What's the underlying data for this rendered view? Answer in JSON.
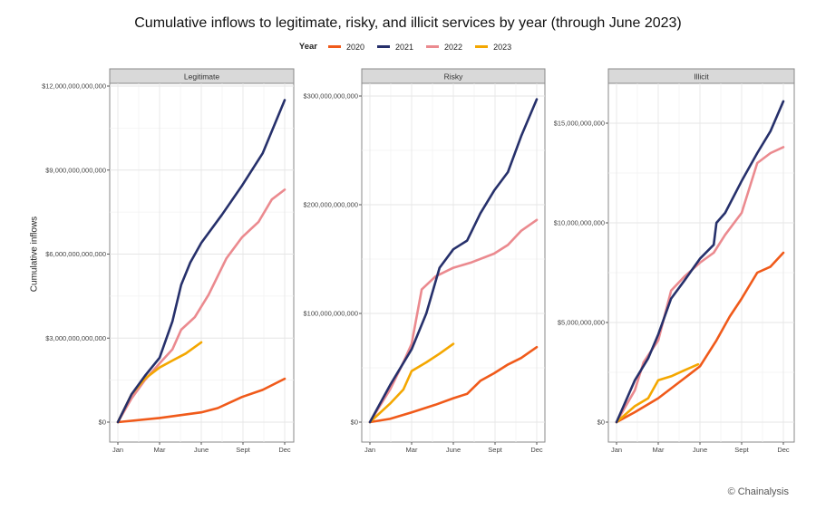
{
  "chart_data": {
    "type": "line",
    "title": "Cumulative inflows to legitimate, risky, and illicit services by year (through June 2023)",
    "ylabel": "Cumulative inflows",
    "xlabel": "",
    "legend": {
      "title": "Year",
      "placement": "top",
      "entries": [
        "2020",
        "2021",
        "2022",
        "2023"
      ]
    },
    "colors": {
      "2020": "#f05a1a",
      "2021": "#26306b",
      "2022": "#eb8a8f",
      "2023": "#f4a700"
    },
    "grid": true,
    "x_unit": "day of year",
    "x_ticks": [
      {
        "label": "Jan",
        "value": 1
      },
      {
        "label": "Mar",
        "value": 92
      },
      {
        "label": "June",
        "value": 183
      },
      {
        "label": "Sept",
        "value": 274
      },
      {
        "label": "Dec",
        "value": 365
      }
    ],
    "panels": [
      {
        "name": "Legitimate",
        "ylim": [
          0,
          12000000000000
        ],
        "y_ticks": [
          {
            "label": "$0",
            "value": 0
          },
          {
            "label": "$3,000,000,000,000",
            "value": 3000000000000
          },
          {
            "label": "$6,000,000,000,000",
            "value": 6000000000000
          },
          {
            "label": "$9,000,000,000,000",
            "value": 9000000000000
          },
          {
            "label": "$12,000,000,000,000",
            "value": 12000000000000
          }
        ],
        "unit": 1000000000000,
        "series": [
          {
            "name": "2020",
            "x": [
              1,
              92,
              183,
              219,
              272,
              317,
              365
            ],
            "y": [
              0,
              0.15,
              0.35,
              0.5,
              0.9,
              1.15,
              1.55
            ]
          },
          {
            "name": "2021",
            "x": [
              1,
              31,
              60,
              92,
              120,
              139,
              159,
              183,
              228,
              272,
              317,
              365
            ],
            "y": [
              0,
              1.0,
              1.65,
              2.3,
              3.6,
              4.9,
              5.7,
              6.4,
              7.4,
              8.45,
              9.6,
              11.5
            ]
          },
          {
            "name": "2022",
            "x": [
              1,
              31,
              60,
              92,
              120,
              139,
              169,
              199,
              238,
              272,
              308,
              337,
              365
            ],
            "y": [
              0,
              0.85,
              1.5,
              2.1,
              2.6,
              3.3,
              3.75,
              4.55,
              5.85,
              6.6,
              7.15,
              7.95,
              8.3
            ]
          },
          {
            "name": "2023",
            "x": [
              1,
              31,
              60,
              92,
              120,
              149,
              183
            ],
            "y": [
              0,
              1.0,
              1.55,
              1.95,
              2.2,
              2.45,
              2.85
            ]
          }
        ]
      },
      {
        "name": "Risky",
        "ylim": [
          0,
          300000000000
        ],
        "y_ticks": [
          {
            "label": "$0",
            "value": 0
          },
          {
            "label": "$100,000,000,000",
            "value": 100000000000
          },
          {
            "label": "$200,000,000,000",
            "value": 200000000000
          },
          {
            "label": "$300,000,000,000",
            "value": 300000000000
          }
        ],
        "unit": 1000000000,
        "series": [
          {
            "name": "2020",
            "x": [
              1,
              45,
              92,
              144,
              183,
              213,
              242,
              272,
              302,
              331,
              365
            ],
            "y": [
              0,
              3,
              9,
              16,
              22,
              26,
              38,
              45,
              53,
              59,
              69
            ]
          },
          {
            "name": "2021",
            "x": [
              1,
              45,
              92,
              124,
              153,
              183,
              213,
              242,
              272,
              302,
              331,
              365
            ],
            "y": [
              0,
              34,
              67,
              100,
              142,
              159,
              167,
              192,
              213,
              230,
              263,
              297
            ]
          },
          {
            "name": "2022",
            "x": [
              1,
              45,
              74,
              92,
              114,
              144,
              183,
              223,
              272,
              302,
              331,
              365
            ],
            "y": [
              0,
              30,
              55,
              72,
              122,
              134,
              142,
              147,
              155,
              163,
              176,
              186
            ]
          },
          {
            "name": "2023",
            "x": [
              1,
              45,
              74,
              92,
              124,
              153,
              183
            ],
            "y": [
              0,
              17,
              30,
              47,
              55,
              63,
              72
            ]
          }
        ]
      },
      {
        "name": "Illicit",
        "ylim": [
          0,
          15000000000
        ],
        "y_ticks": [
          {
            "label": "$0",
            "value": 0
          },
          {
            "label": "$5,000,000,000",
            "value": 5000000000
          },
          {
            "label": "$10,000,000,000",
            "value": 10000000000
          },
          {
            "label": "$15,000,000,000",
            "value": 15000000000
          }
        ],
        "unit": 1000000000,
        "series": [
          {
            "name": "2020",
            "x": [
              1,
              41,
              92,
              149,
              183,
              219,
              248,
              274,
              308,
              337,
              365
            ],
            "y": [
              0,
              0.5,
              1.2,
              2.2,
              2.8,
              4.1,
              5.3,
              6.2,
              7.5,
              7.8,
              8.5
            ]
          },
          {
            "name": "2021",
            "x": [
              1,
              41,
              70,
              92,
              120,
              149,
              183,
              213,
              219,
              238,
              274,
              308,
              337,
              365
            ],
            "y": [
              0,
              2.1,
              3.2,
              4.4,
              6.2,
              7.1,
              8.2,
              8.9,
              10.0,
              10.5,
              12.1,
              13.5,
              14.6,
              16.1
            ]
          },
          {
            "name": "2022",
            "x": [
              1,
              41,
              60,
              92,
              120,
              149,
              183,
              213,
              238,
              274,
              308,
              337,
              365
            ],
            "y": [
              0,
              1.6,
              3.0,
              4.1,
              6.6,
              7.3,
              8.0,
              8.5,
              9.4,
              10.5,
              13.0,
              13.5,
              13.8
            ]
          },
          {
            "name": "2023",
            "x": [
              1,
              41,
              70,
              92,
              120,
              149,
              179
            ],
            "y": [
              0,
              0.8,
              1.2,
              2.1,
              2.3,
              2.6,
              2.9
            ]
          }
        ]
      }
    ]
  },
  "credit": "© Chainalysis"
}
